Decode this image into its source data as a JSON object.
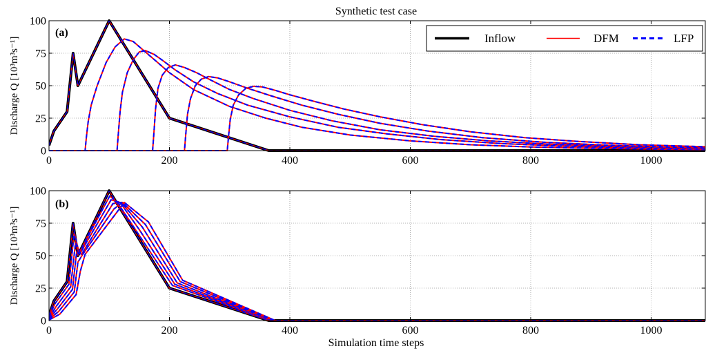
{
  "figure": {
    "title": "Synthetic test case",
    "shared_xlabel": "Simulation time steps"
  },
  "legend": {
    "entries": [
      {
        "label": "Inflow",
        "color": "#000000",
        "style": "solid-thick"
      },
      {
        "label": "DFM",
        "color": "#ff0000",
        "style": "solid"
      },
      {
        "label": "LFP",
        "color": "#0000ff",
        "style": "dashed"
      }
    ]
  },
  "chart_data": [
    {
      "type": "line",
      "panel_label": "(a)",
      "title": "Synthetic test case",
      "xlabel": "",
      "ylabel": "Discharge Q [10³m³s⁻¹]",
      "xlim": [
        0,
        1090
      ],
      "ylim": [
        0,
        100
      ],
      "xticks": [
        0,
        200,
        400,
        600,
        800,
        1000
      ],
      "yticks": [
        0,
        25,
        50,
        75,
        100
      ],
      "grid": true,
      "legend_position": "top-right",
      "inflow": {
        "name": "Inflow",
        "x": [
          0,
          8,
          30,
          40,
          48,
          100,
          200,
          365,
          1090
        ],
        "y": [
          4,
          15,
          30,
          75,
          50,
          100,
          25,
          0,
          0
        ]
      },
      "routed": [
        {
          "x": [
            0,
            60,
            62,
            65,
            70,
            80,
            95,
            110,
            125,
            140,
            155,
            175,
            200,
            240,
            300,
            360,
            420,
            500,
            600,
            700,
            800,
            900,
            1000,
            1090
          ],
          "y": [
            0,
            0,
            10,
            22,
            35,
            50,
            68,
            80,
            86,
            84,
            78,
            70,
            60,
            47,
            34,
            25,
            18,
            12,
            7.5,
            4.5,
            2.8,
            1.8,
            1.2,
            0.8
          ]
        },
        {
          "x": [
            0,
            113,
            115,
            118,
            122,
            130,
            140,
            150,
            160,
            175,
            190,
            210,
            240,
            280,
            330,
            400,
            480,
            560,
            650,
            750,
            850,
            950,
            1090
          ],
          "y": [
            0,
            0,
            12,
            30,
            45,
            60,
            70,
            76,
            77,
            74,
            69,
            62,
            53,
            44,
            35,
            26,
            18,
            13,
            8.5,
            5.5,
            3.5,
            2.3,
            1.3
          ]
        },
        {
          "x": [
            0,
            172,
            174,
            177,
            181,
            188,
            198,
            210,
            225,
            245,
            270,
            300,
            340,
            400,
            470,
            550,
            640,
            730,
            830,
            930,
            1090
          ],
          "y": [
            0,
            0,
            12,
            32,
            48,
            58,
            64,
            66,
            64,
            60,
            54,
            47,
            40,
            31,
            23,
            16,
            11,
            7.5,
            5,
            3.3,
            1.8
          ]
        },
        {
          "x": [
            0,
            225,
            227,
            230,
            235,
            243,
            253,
            265,
            280,
            300,
            330,
            370,
            420,
            480,
            550,
            630,
            720,
            820,
            920,
            1020,
            1090
          ],
          "y": [
            0,
            0,
            12,
            28,
            40,
            50,
            55,
            57,
            56,
            53,
            48,
            42,
            35,
            28,
            21,
            15,
            10,
            6.5,
            4.3,
            2.8,
            2
          ]
        },
        {
          "x": [
            0,
            296,
            298,
            301,
            306,
            315,
            327,
            340,
            355,
            375,
            400,
            440,
            490,
            550,
            620,
            700,
            790,
            880,
            980,
            1090
          ],
          "y": [
            0,
            0,
            10,
            24,
            35,
            43,
            48,
            49.5,
            49,
            46.5,
            43,
            38,
            32,
            26,
            20,
            14.5,
            10,
            7,
            4.5,
            3
          ]
        }
      ]
    },
    {
      "type": "line",
      "panel_label": "(b)",
      "xlabel": "Simulation time steps",
      "ylabel": "Discharge Q [10³m³s⁻¹]",
      "xlim": [
        0,
        1090
      ],
      "ylim": [
        0,
        100
      ],
      "xticks": [
        0,
        200,
        400,
        600,
        800,
        1000
      ],
      "yticks": [
        0,
        25,
        50,
        75,
        100
      ],
      "grid": true,
      "inflow": {
        "name": "Inflow",
        "x": [
          0,
          8,
          30,
          40,
          48,
          100,
          200,
          365,
          1090
        ],
        "y": [
          4,
          15,
          30,
          75,
          50,
          100,
          25,
          0,
          0
        ]
      },
      "routed": [
        {
          "x": [
            0,
            10,
            33,
            42,
            50,
            101,
            115,
            205,
            368,
            1090
          ],
          "y": [
            3,
            13,
            28,
            68,
            52,
            96,
            90,
            27,
            0,
            0
          ]
        },
        {
          "x": [
            0,
            12,
            36,
            44,
            52,
            103,
            118,
            150,
            209,
            370,
            1090
          ],
          "y": [
            2,
            11,
            26,
            60,
            52,
            93,
            91,
            70,
            28,
            0,
            0
          ]
        },
        {
          "x": [
            0,
            14,
            39,
            46,
            54,
            106,
            120,
            155,
            213,
            372,
            1090
          ],
          "y": [
            1.5,
            9,
            24,
            53,
            51,
            90,
            91,
            72,
            29,
            0,
            0
          ]
        },
        {
          "x": [
            0,
            16,
            42,
            48,
            56,
            108,
            122,
            160,
            218,
            374,
            1090
          ],
          "y": [
            1,
            7,
            22,
            45,
            51,
            86,
            91,
            74,
            30,
            0,
            0
          ]
        },
        {
          "x": [
            0,
            18,
            45,
            52,
            60,
            112,
            125,
            165,
            222,
            376,
            1090
          ],
          "y": [
            0.5,
            5,
            20,
            38,
            51,
            83,
            91,
            76,
            31,
            0,
            0
          ]
        }
      ]
    }
  ]
}
